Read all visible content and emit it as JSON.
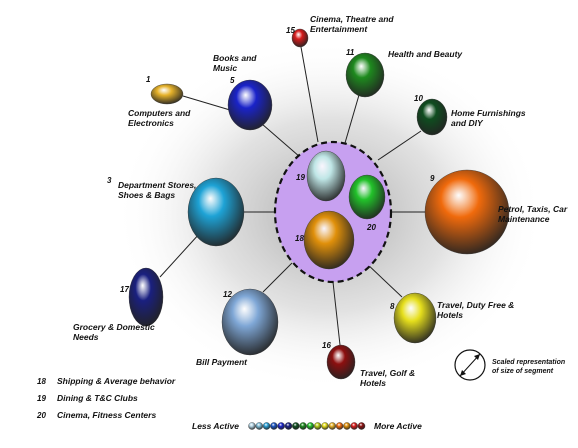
{
  "colors": {
    "background": "#ffffff",
    "hub_fill": "#c7a0f0",
    "hub_border": "#111111",
    "connector": "#222222"
  },
  "segments": [
    {
      "id": "1",
      "label": [
        "Computers and",
        "Electronics"
      ],
      "color": "#e6b22a",
      "icon": "ellipse-bubble"
    },
    {
      "id": "5",
      "label": [
        "Books and",
        "Music"
      ],
      "color": "#1a23c9",
      "icon": "ellipse-bubble"
    },
    {
      "id": "15",
      "label": [
        "Cinema, Theatre and",
        "Entertainment"
      ],
      "color": "#d81c1c",
      "icon": "ellipse-bubble"
    },
    {
      "id": "11",
      "label": [
        "Health and Beauty"
      ],
      "color": "#1e8a1e",
      "icon": "ellipse-bubble"
    },
    {
      "id": "10",
      "label": [
        "Home Furnishings",
        "and DIY"
      ],
      "color": "#0f4d1f",
      "icon": "ellipse-bubble"
    },
    {
      "id": "3",
      "label": [
        "Department Stores,",
        "Shoes & Bags"
      ],
      "color": "#1ea3d6",
      "icon": "ellipse-bubble"
    },
    {
      "id": "9",
      "label": [
        "Petrol, Taxis, Car",
        "Maintenance"
      ],
      "color": "#f06a0c",
      "icon": "ellipse-bubble"
    },
    {
      "id": "17",
      "label": [
        "Grocery & Domestic",
        "Needs"
      ],
      "color": "#1a2080",
      "icon": "ellipse-bubble"
    },
    {
      "id": "12",
      "label": [
        "Bill Payment"
      ],
      "color": "#7fa7d6",
      "icon": "ellipse-bubble"
    },
    {
      "id": "16",
      "label": [
        "Travel, Golf &",
        "Hotels"
      ],
      "color": "#8c0f0f",
      "icon": "ellipse-bubble"
    },
    {
      "id": "8",
      "label": [
        "Travel, Duty Free &",
        "Hotels"
      ],
      "color": "#e6df1c",
      "icon": "ellipse-bubble"
    }
  ],
  "hub_segments": [
    {
      "id": "19",
      "color": "#bfe6e6"
    },
    {
      "id": "20",
      "color": "#22c22a"
    },
    {
      "id": "18",
      "color": "#e0900a"
    }
  ],
  "hub_legend": [
    {
      "id": "18",
      "text": "Shipping & Average behavior"
    },
    {
      "id": "19",
      "text": "Dining & T&C Clubs"
    },
    {
      "id": "20",
      "text": "Cinema, Fitness Centers"
    }
  ],
  "scale_note": [
    "Scaled representation",
    "of size of segment"
  ],
  "activity_scale": {
    "less_label": "Less Active",
    "more_label": "More Active",
    "colors": [
      "#b6d6e6",
      "#7fbcd6",
      "#2aa0d6",
      "#1a55c2",
      "#1a23c9",
      "#1a2080",
      "#0f4d1f",
      "#1e8a1e",
      "#22c22a",
      "#b6cf1a",
      "#e6df1c",
      "#e6b22a",
      "#f06a0c",
      "#e0900a",
      "#d81c1c",
      "#8c0f0f"
    ]
  }
}
